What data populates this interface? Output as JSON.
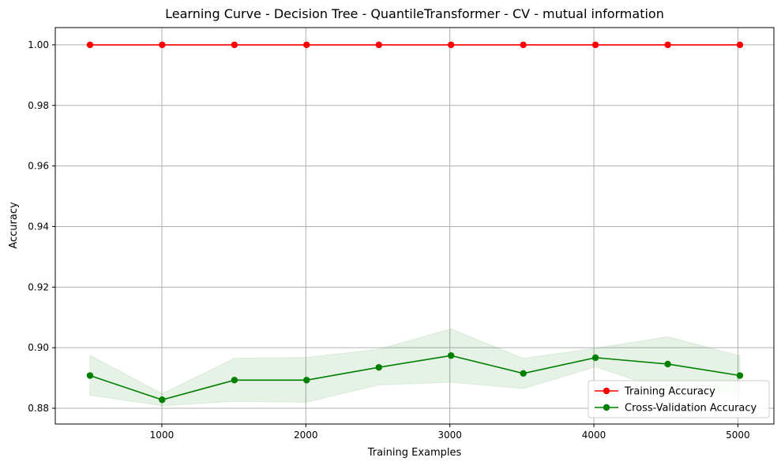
{
  "chart_data": {
    "type": "line",
    "title": "Learning Curve - Decision Tree - QuantileTransformer - CV - mutual information",
    "xlabel": "Training Examples",
    "ylabel": "Accuracy",
    "xlim": [
      260,
      5250
    ],
    "ylim": [
      0.8748,
      1.0057
    ],
    "xticks": [
      1000,
      2000,
      3000,
      4000,
      5000
    ],
    "yticks": [
      0.88,
      0.9,
      0.92,
      0.94,
      0.96,
      0.98,
      1.0
    ],
    "ytick_labels": [
      "0.88",
      "0.90",
      "0.92",
      "0.94",
      "0.96",
      "0.98",
      "1.00"
    ],
    "grid": true,
    "legend_position": "lower right",
    "x": [
      501,
      1002,
      1504,
      2005,
      2507,
      3008,
      3510,
      4011,
      4513,
      5014
    ],
    "series": [
      {
        "name": "Training Accuracy",
        "color": "#ff0000",
        "marker": "circle",
        "values": [
          1.0,
          1.0,
          1.0,
          1.0,
          1.0,
          1.0,
          1.0,
          1.0,
          1.0,
          1.0
        ],
        "band_upper": [
          1.0,
          1.0,
          1.0,
          1.0,
          1.0,
          1.0,
          1.0,
          1.0,
          1.0,
          1.0
        ],
        "band_lower": [
          1.0,
          1.0,
          1.0,
          1.0,
          1.0,
          1.0,
          1.0,
          1.0,
          1.0,
          1.0
        ]
      },
      {
        "name": "Cross-Validation Accuracy",
        "color": "#008000",
        "band_color": "#008000",
        "marker": "circle",
        "values": [
          0.8908,
          0.8828,
          0.8893,
          0.8893,
          0.8935,
          0.8974,
          0.8915,
          0.8967,
          0.8946,
          0.8908
        ],
        "band_upper": [
          0.8975,
          0.8848,
          0.8965,
          0.8968,
          0.8995,
          0.9062,
          0.8965,
          0.8998,
          0.9036,
          0.8973
        ],
        "band_lower": [
          0.8843,
          0.8808,
          0.8823,
          0.882,
          0.8877,
          0.8886,
          0.8865,
          0.8937,
          0.8857,
          0.8843
        ]
      }
    ]
  }
}
